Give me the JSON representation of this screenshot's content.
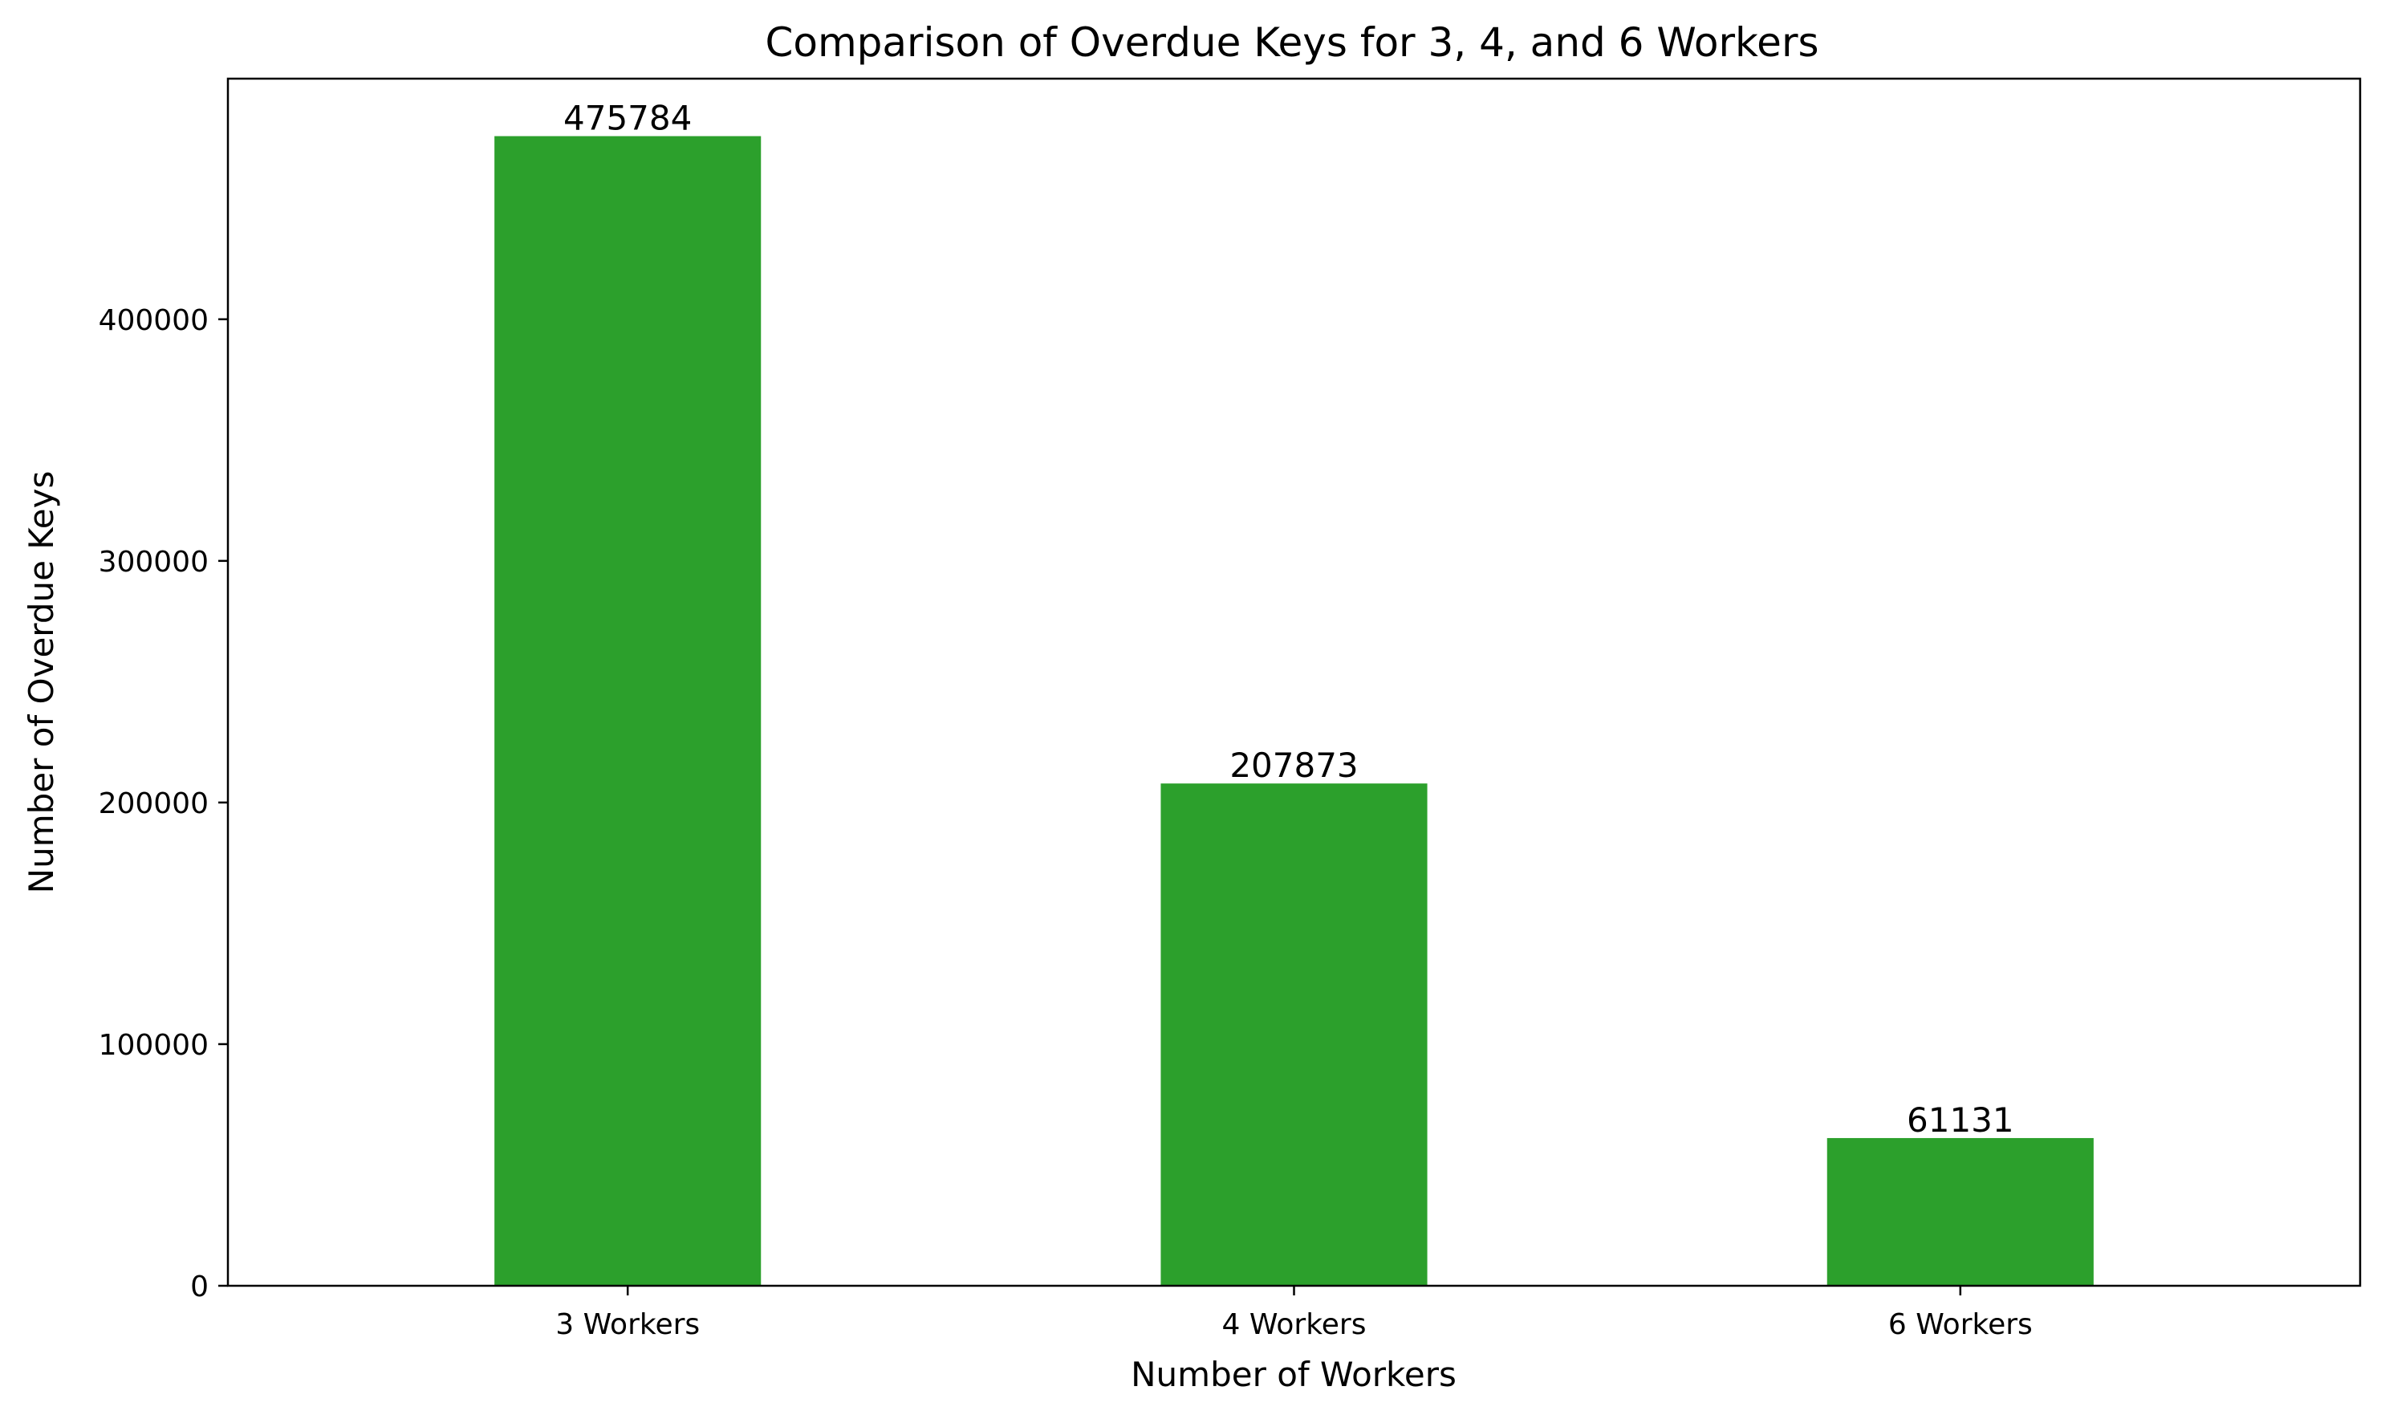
{
  "chart_data": {
    "type": "bar",
    "title": "Comparison of Overdue Keys for 3, 4, and 6 Workers",
    "xlabel": "Number of Workers",
    "ylabel": "Number of Overdue Keys",
    "categories": [
      "3 Workers",
      "4 Workers",
      "6 Workers"
    ],
    "values": [
      475784,
      207873,
      61131
    ],
    "value_labels": [
      "475784",
      "207873",
      "61131"
    ],
    "ylim": [
      0,
      499573
    ],
    "yticks": [
      0,
      100000,
      200000,
      300000,
      400000
    ],
    "ytick_labels": [
      "0",
      "100000",
      "200000",
      "300000",
      "400000"
    ],
    "bar_color": "#2ca02c",
    "grid": false,
    "legend": "none"
  }
}
